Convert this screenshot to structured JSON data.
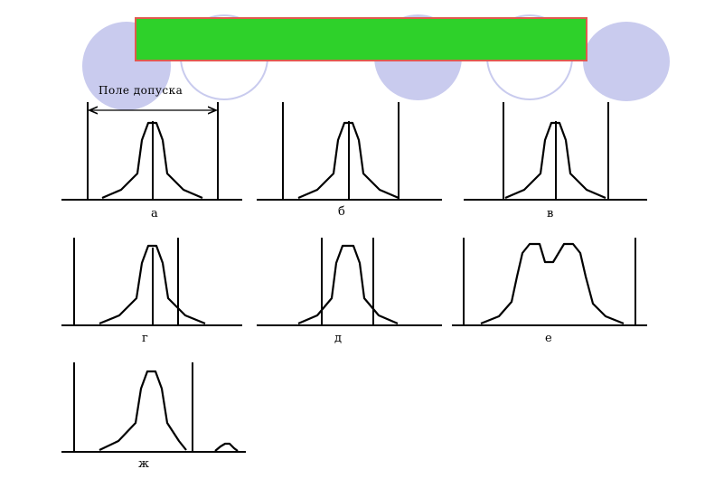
{
  "header": {
    "title": "",
    "bar_color": "#2ed12a",
    "border_color": "#e05a4e",
    "decor_color": "#c9cbee"
  },
  "diagram": {
    "tolerance_label": "Поле допуска",
    "panels": [
      {
        "label": "а"
      },
      {
        "label": "б"
      },
      {
        "label": "в"
      },
      {
        "label": "г"
      },
      {
        "label": "д"
      },
      {
        "label": "е"
      },
      {
        "label": "ж"
      }
    ]
  }
}
